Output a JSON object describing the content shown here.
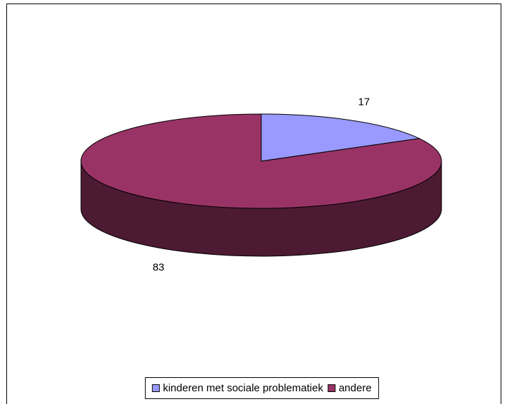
{
  "chart_data": {
    "type": "pie3d",
    "categories": [
      "kinderen met sociale problematiek",
      "andere"
    ],
    "values": [
      17,
      83
    ],
    "colors": [
      "#9999ff",
      "#993366"
    ],
    "legend": "bottom"
  }
}
